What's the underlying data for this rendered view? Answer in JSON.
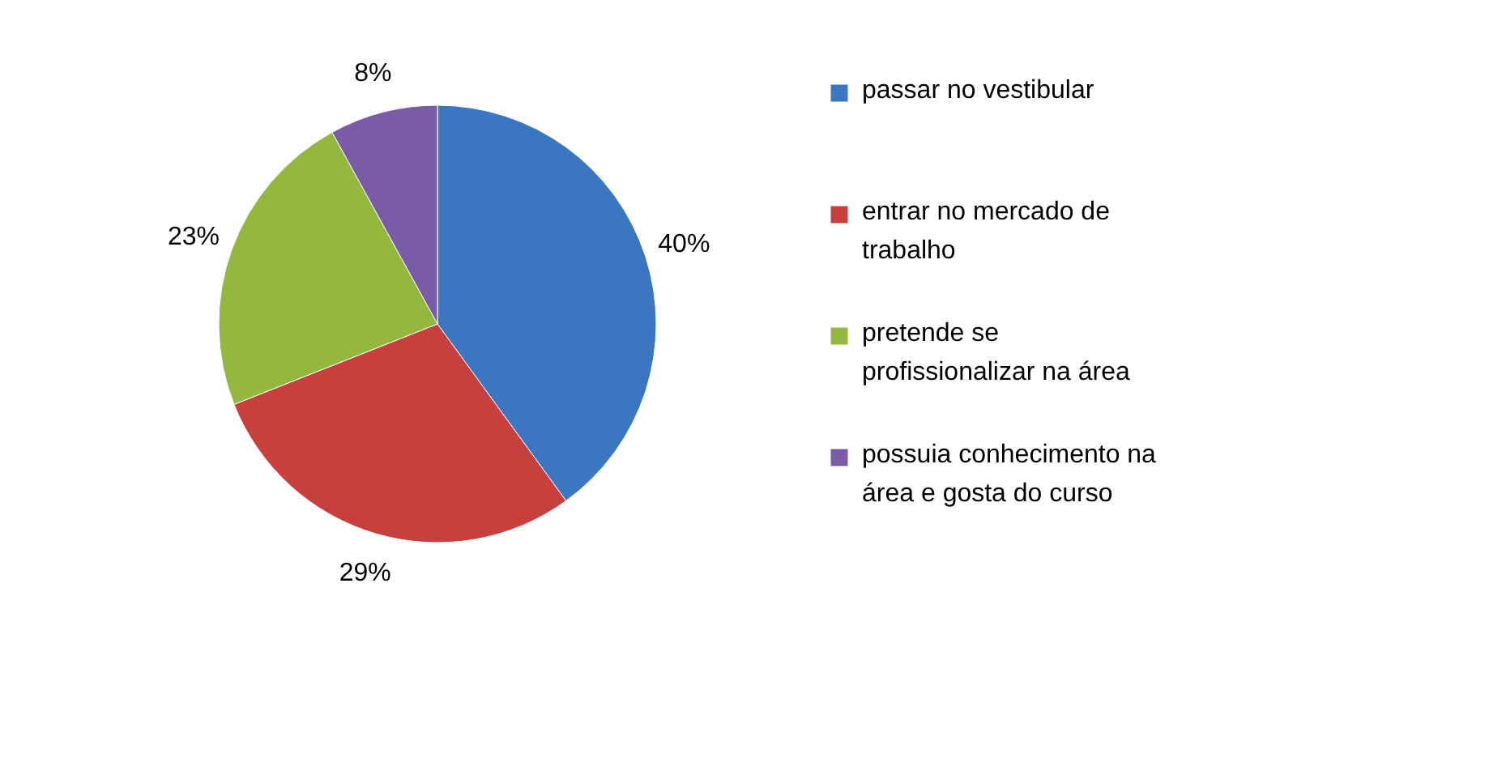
{
  "chart_data": {
    "type": "pie",
    "categories": [
      "passar no vestibular",
      "entrar no mercado de trabalho",
      "pretende se profissionalizar na área",
      "possuia conhecimento na área e gosta do curso"
    ],
    "values": [
      40,
      29,
      23,
      8
    ],
    "colors": [
      "#3b76c3",
      "#c8403d",
      "#94b73e",
      "#7a5ba5"
    ],
    "value_labels": [
      "40%",
      "29%",
      "23%",
      "8%"
    ],
    "legend": "right"
  }
}
